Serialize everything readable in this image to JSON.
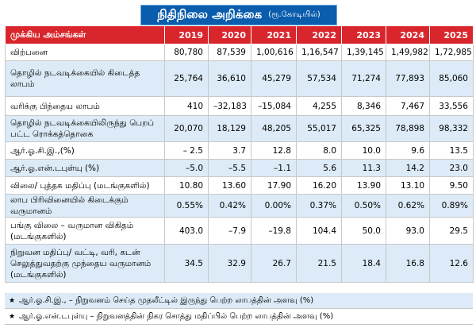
{
  "title": {
    "main": "நிதிநிலை அறிக்கை",
    "unit": "(ரூ.கோடியில்)"
  },
  "colors": {
    "title_bg": "#0a5cac",
    "header_bg": "#d9262d",
    "stripe": "#dcebf7"
  },
  "table": {
    "header_label": "முக்கிய அம்சங்கள்",
    "years": [
      "2019",
      "2020",
      "2021",
      "2022",
      "2023",
      "2024",
      "2025"
    ],
    "rows": [
      {
        "label": "விற்பனை",
        "values": [
          "80,780",
          "87,539",
          "1,00,616",
          "1,16,547",
          "1,39,145",
          "1,49,982",
          "1,72,985"
        ]
      },
      {
        "label": "தொழில் நடவடிக்கையில் கிடைத்த லாபம்",
        "values": [
          "25,764",
          "36,610",
          "45,279",
          "57,534",
          "71,274",
          "77,893",
          "85,060"
        ]
      },
      {
        "label": "வரிக்கு பிந்தைய லாபம்",
        "values": [
          "410",
          "–32,183",
          "–15,084",
          "4,255",
          "8,346",
          "7,467",
          "33,556"
        ]
      },
      {
        "label": "தொழில் நடவடிக்கையிலிருந்து பெறப் பட்ட ரொக்கத்தொகை",
        "values": [
          "20,070",
          "18,129",
          "48,205",
          "55,017",
          "65,325",
          "78,898",
          "98,332"
        ]
      },
      {
        "label": "ஆர்.ஓ.சி.இ.,(%)",
        "values": [
          "– 2.5",
          "3.7",
          "12.8",
          "8.0",
          "10.0",
          "9.6",
          "13.5"
        ]
      },
      {
        "label": "ஆர்.ஓ.என்.டபுள்யு (%)",
        "values": [
          "–5.0",
          "–5.5",
          "–1.1",
          "5.6",
          "11.3",
          "14.2",
          "23.0"
        ]
      },
      {
        "label": "விலை/ புத்தக மதிப்பு (மடங்குகளில்)",
        "values": [
          "10.80",
          "13.60",
          "17.90",
          "16.20",
          "13.90",
          "13.10",
          "9.50"
        ]
      },
      {
        "label": "லாப பிரிவினையில் கிடைக்கும் வருமானம்",
        "values": [
          "0.55%",
          "0.42%",
          "0.00%",
          "0.37%",
          "0.50%",
          "0.62%",
          "0.89%"
        ]
      },
      {
        "label": "பங்கு விலை – வருமான விகிதம் (மடங்குகளில்)",
        "values": [
          "403.0",
          "–7.9",
          "–19.8",
          "104.4",
          "50.0",
          "93.0",
          "29.5"
        ]
      },
      {
        "label": "நிறுவன மதிப்பு/ வட்டி, வரி, கடன் செலுத்துவதற்கு முந்தைய வருமானம் (மடங்குகளில்)",
        "values": [
          "34.5",
          "32.9",
          "26.7",
          "21.5",
          "18.4",
          "16.8",
          "12.6"
        ]
      }
    ]
  },
  "footnotes": [
    {
      "marker": "★",
      "text": "ஆர்.ஓ.சி.இ., – நிறுவனம் செய்த முதலீட்டில் இருந்து பெற்ற லாபத்தின் அளவு (%)"
    },
    {
      "marker": "★",
      "text": "ஆர்.ஓ.என்.டபுள்யு – நிறுவனத்தின் நிகர சொத்து மதிப்பில் பெற்ற லாபத்தின் அளவு (%)"
    }
  ]
}
